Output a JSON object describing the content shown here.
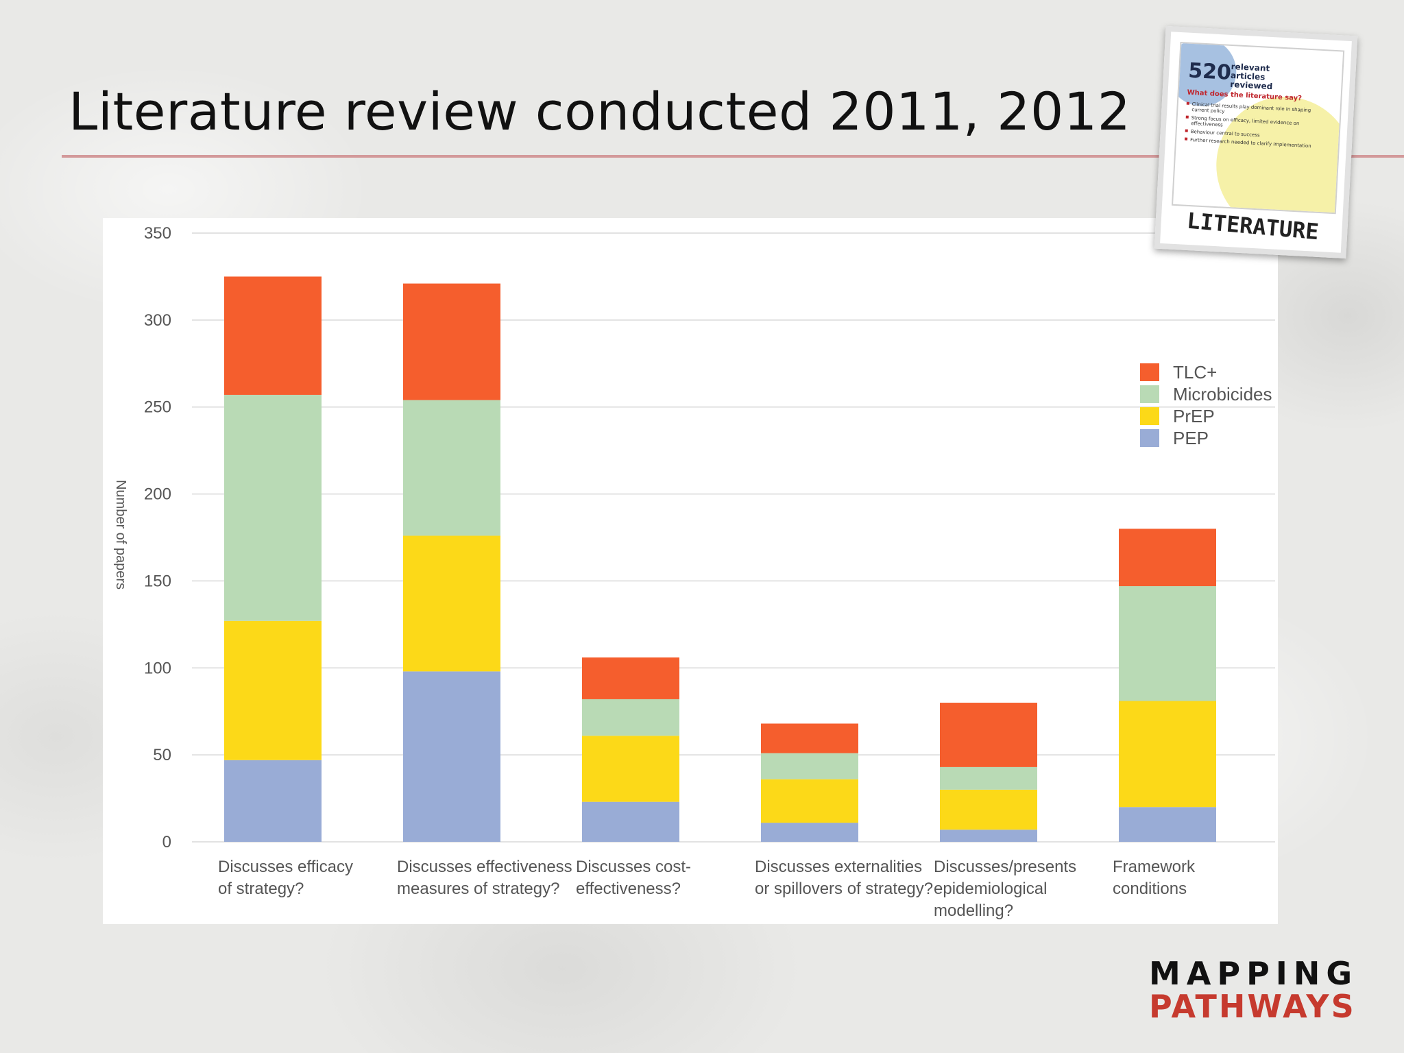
{
  "slide": {
    "title": "Literature review conducted 2011, 2012"
  },
  "polaroid": {
    "count": "520",
    "count_label": "relevant articles reviewed",
    "question": "What does the literature say?",
    "bullets": [
      "Clinical trial results play dominant role in shaping current policy",
      "Strong focus on efficacy, limited evidence on effectiveness",
      "Behaviour central to success",
      "Further research needed to clarify implementation"
    ],
    "caption": "LITERATURE"
  },
  "logo": {
    "line1": "MAPPING",
    "line2": "PATHWAYS"
  },
  "chart_data": {
    "type": "bar",
    "stacked": true,
    "title": "",
    "xlabel": "",
    "ylabel": "Number of papers",
    "ylim": [
      0,
      350
    ],
    "yticks": [
      0,
      50,
      100,
      150,
      200,
      250,
      300,
      350
    ],
    "grid": true,
    "legend_position": "right",
    "categories": [
      [
        "Discusses efficacy",
        "of strategy?"
      ],
      [
        "Discusses effectiveness",
        "measures of strategy?"
      ],
      [
        "Discusses cost-",
        "effectiveness?"
      ],
      [
        "Discusses externalities",
        "or spillovers of strategy?"
      ],
      [
        "Discusses/presents",
        "epidemiological",
        "modelling?"
      ],
      [
        "Framework",
        "conditions"
      ]
    ],
    "series": [
      {
        "name": "PEP",
        "color": "#99acd6",
        "values": [
          47,
          98,
          23,
          11,
          7,
          20
        ]
      },
      {
        "name": "PrEP",
        "color": "#fcd918",
        "values": [
          80,
          78,
          38,
          25,
          23,
          61
        ]
      },
      {
        "name": "Microbicides",
        "color": "#b9dab5",
        "values": [
          130,
          78,
          21,
          15,
          13,
          66
        ]
      },
      {
        "name": "TLC+",
        "color": "#f55e2d",
        "values": [
          68,
          67,
          24,
          17,
          37,
          33
        ]
      }
    ],
    "legend_order": [
      "TLC+",
      "Microbicides",
      "PrEP",
      "PEP"
    ]
  }
}
